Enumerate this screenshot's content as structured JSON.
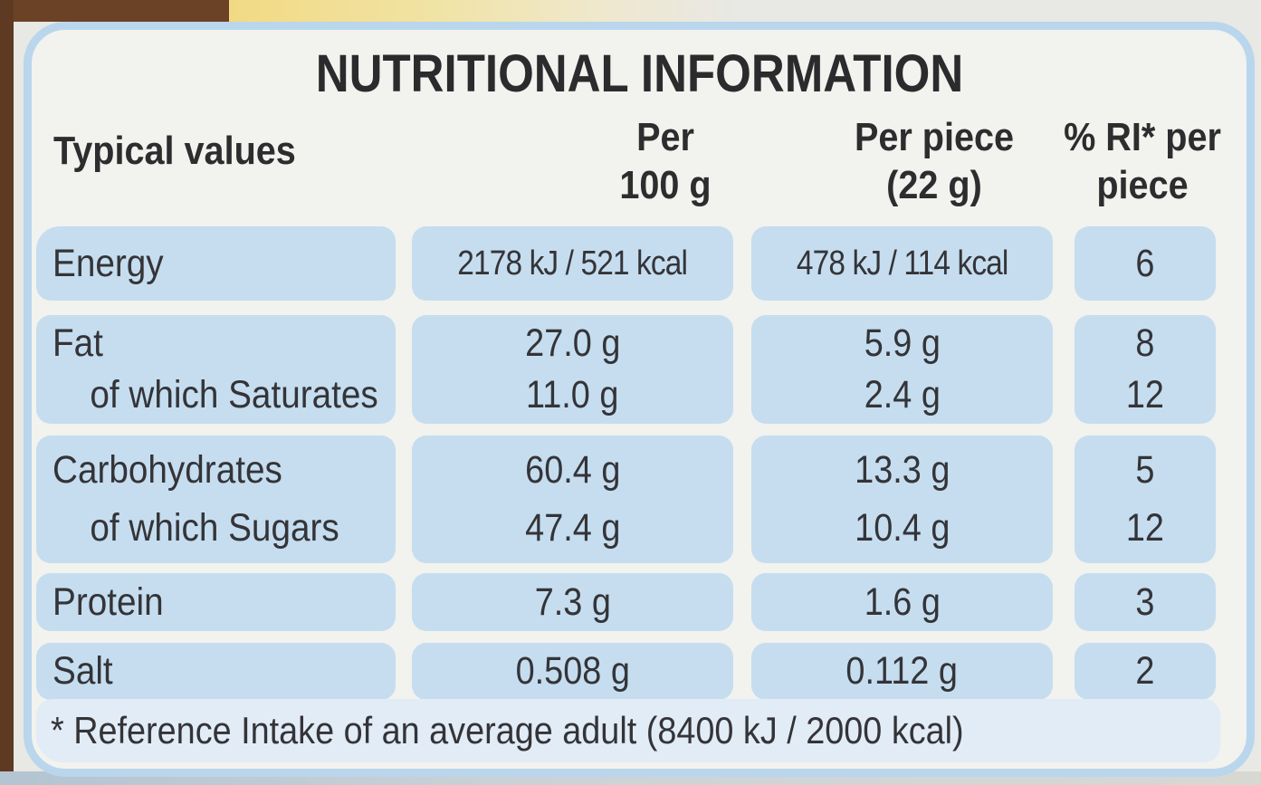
{
  "label": {
    "title": "NUTRITIONAL INFORMATION",
    "header": {
      "corner": "Typical values",
      "col_per_100g": {
        "line1": "Per",
        "line2": "100 g"
      },
      "col_per_piece": {
        "line1": "Per piece",
        "line2": "(22 g)"
      },
      "col_ri": {
        "line1": "% RI* per",
        "line2": "piece"
      }
    },
    "rows": {
      "energy": {
        "label": "Energy",
        "per_100g": "2178 kJ / 521 kcal",
        "per_piece": "478 kJ / 114 kcal",
        "ri_percent": "6"
      },
      "fat": {
        "label": "Fat",
        "per_100g": "27.0 g",
        "per_piece": "5.9 g",
        "ri_percent": "8"
      },
      "saturates": {
        "label": "of which Saturates",
        "per_100g": "11.0 g",
        "per_piece": "2.4 g",
        "ri_percent": "12"
      },
      "carbohydrates": {
        "label": "Carbohydrates",
        "per_100g": "60.4 g",
        "per_piece": "13.3 g",
        "ri_percent": "5"
      },
      "sugars": {
        "label": "of which Sugars",
        "per_100g": "47.4 g",
        "per_piece": "10.4 g",
        "ri_percent": "12"
      },
      "protein": {
        "label": "Protein",
        "per_100g": "7.3 g",
        "per_piece": "1.6 g",
        "ri_percent": "3"
      },
      "salt": {
        "label": "Salt",
        "per_100g": "0.508 g",
        "per_piece": "0.112 g",
        "ri_percent": "2"
      }
    },
    "footnote": "* Reference Intake of an average adult (8400 kJ / 2000 kcal)"
  },
  "colors": {
    "band_blue": "#c5ddef",
    "footnote_band_blue": "#e2ecf6",
    "card_border_blue": "#b9d6ec",
    "card_background": "#f2f2ee",
    "text_dark": "#2d2d2f",
    "packaging_brown": "#5e3a22",
    "packaging_yellow": "#f2da84",
    "outer_background": "#e8e8e4"
  }
}
